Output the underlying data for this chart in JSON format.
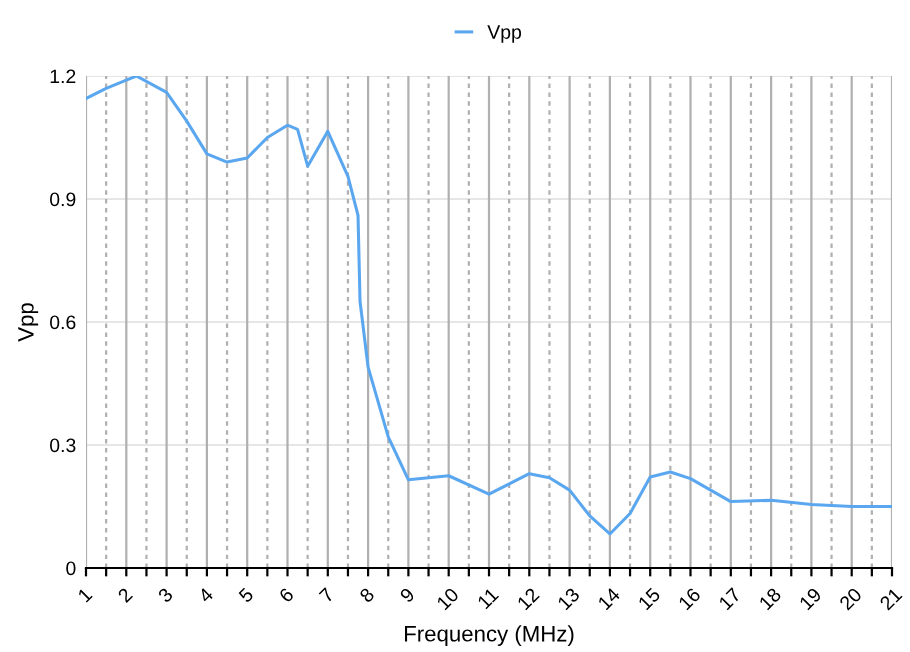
{
  "chart_data": {
    "type": "line",
    "xlabel": "Frequency (MHz)",
    "ylabel": "Vpp",
    "legend": "top",
    "grid": true,
    "marker": "none",
    "line_style": "solid",
    "xlim": [
      1,
      21
    ],
    "ylim": [
      0,
      1.2
    ],
    "yticks": [
      0,
      0.3,
      0.6,
      0.9,
      1.2
    ],
    "xticks": [
      1,
      {
        "value": 1.5,
        "label": null
      },
      2,
      {
        "value": 2.5,
        "label": null
      },
      3,
      {
        "value": 3.5,
        "label": null
      },
      4,
      {
        "value": 4.5,
        "label": null
      },
      5,
      {
        "value": 5.5,
        "label": null
      },
      6,
      {
        "value": 6.5,
        "label": null
      },
      7,
      {
        "value": 7.5,
        "label": null
      },
      8,
      {
        "value": 8.5,
        "label": null
      },
      9,
      {
        "value": 9.5,
        "label": null
      },
      10,
      {
        "value": 10.5,
        "label": null
      },
      11,
      {
        "value": 11.5,
        "label": null
      },
      12,
      {
        "value": 12.5,
        "label": null
      },
      13,
      {
        "value": 13.5,
        "label": null
      },
      14,
      {
        "value": 14.5,
        "label": null
      },
      15,
      {
        "value": 15.5,
        "label": null
      },
      16,
      {
        "value": 16.5,
        "label": null
      },
      17,
      {
        "value": 17.5,
        "label": null
      },
      18,
      {
        "value": 18.5,
        "label": null
      },
      19,
      {
        "value": 19.5,
        "label": null
      },
      20,
      {
        "value": 20.5,
        "label": null
      },
      21
    ],
    "series": [
      {
        "name": "Vpp",
        "color": "#5aa7f0",
        "x": [
          1,
          1.5,
          2,
          2.25,
          3,
          3.5,
          4,
          4.5,
          5,
          5.5,
          6,
          6.25,
          6.5,
          7,
          7.5,
          7.75,
          7.8,
          8,
          8.5,
          9,
          9.5,
          10,
          11,
          12,
          12.5,
          13,
          13.5,
          14,
          14.5,
          15,
          15.5,
          16,
          16.5,
          17,
          18,
          19,
          20,
          21
        ],
        "values": [
          1.145,
          1.17,
          1.19,
          1.2,
          1.16,
          1.09,
          1.01,
          0.99,
          1.0,
          1.05,
          1.08,
          1.07,
          0.98,
          1.065,
          0.955,
          0.86,
          0.65,
          0.49,
          0.32,
          0.215,
          0.22,
          0.225,
          0.18,
          0.23,
          0.22,
          0.19,
          0.127,
          0.083,
          0.133,
          0.222,
          0.234,
          0.218,
          0.19,
          0.162,
          0.165,
          0.155,
          0.15,
          0.15
        ]
      }
    ]
  }
}
